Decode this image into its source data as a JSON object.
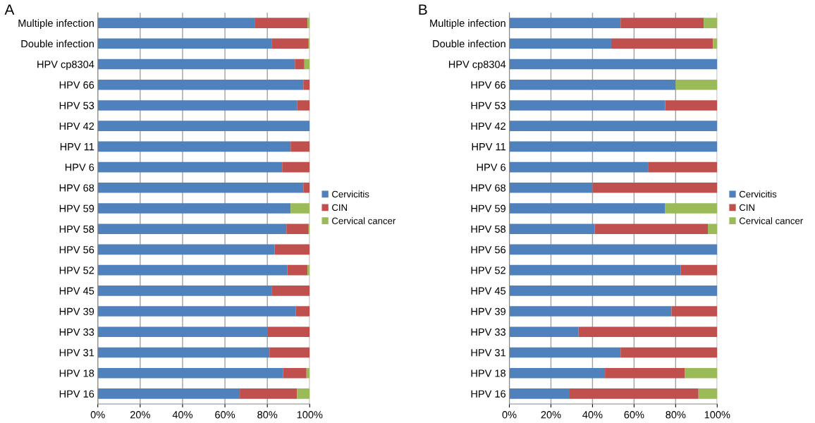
{
  "chart_data": [
    {
      "type": "bar",
      "title": "A",
      "orientation": "horizontal",
      "stacked": true,
      "grid": "x",
      "legend": "right",
      "categories": [
        "Multiple infection",
        "Double infection",
        "HPV cp8304",
        "HPV 66",
        "HPV 53",
        "HPV 42",
        "HPV 11",
        "HPV 6",
        "HPV 68",
        "HPV 59",
        "HPV 58",
        "HPV 56",
        "HPV 52",
        "HPV 45",
        "HPV 39",
        "HPV 33",
        "HPV 31",
        "HPV 18",
        "HPV 16"
      ],
      "xlim": [
        0,
        100
      ],
      "xticks": [
        {
          "value": 0,
          "label": "0%"
        },
        {
          "value": 20,
          "label": "20%"
        },
        {
          "value": 40,
          "label": "40%"
        },
        {
          "value": 60,
          "label": "60%"
        },
        {
          "value": 80,
          "label": "80%"
        },
        {
          "value": 100,
          "label": "100%"
        }
      ],
      "series": [
        {
          "name": "Cervicitis",
          "color": "#4f81bd",
          "values": [
            74,
            82,
            93,
            97,
            94,
            100,
            91,
            87,
            97,
            91,
            89,
            83.5,
            89.5,
            82,
            93.5,
            80,
            81,
            87.5,
            67
          ]
        },
        {
          "name": "CIN",
          "color": "#c0504d",
          "values": [
            25,
            17.5,
            4.5,
            3,
            6,
            0,
            9,
            13,
            3,
            0,
            10.5,
            16.5,
            9.5,
            18,
            6.5,
            20,
            19,
            11,
            27
          ]
        },
        {
          "name": "Cervical cancer",
          "color": "#9bbb59",
          "values": [
            1,
            0.5,
            2.5,
            0,
            0,
            0,
            0,
            0,
            0,
            9,
            0.5,
            0,
            1,
            0,
            0,
            0,
            0,
            1.5,
            6
          ]
        }
      ]
    },
    {
      "type": "bar",
      "title": "B",
      "orientation": "horizontal",
      "stacked": true,
      "grid": "x",
      "legend": "right",
      "categories": [
        "Multiple infection",
        "Double infection",
        "HPV cp8304",
        "HPV 66",
        "HPV 53",
        "HPV 42",
        "HPV 11",
        "HPV 6",
        "HPV 68",
        "HPV 59",
        "HPV 58",
        "HPV 56",
        "HPV 52",
        "HPV 45",
        "HPV 39",
        "HPV 33",
        "HPV 31",
        "HPV 18",
        "HPV 16"
      ],
      "xlim": [
        0,
        100
      ],
      "xticks": [
        {
          "value": 0,
          "label": "0%"
        },
        {
          "value": 20,
          "label": "20%"
        },
        {
          "value": 40,
          "label": "40%"
        },
        {
          "value": 60,
          "label": "60%"
        },
        {
          "value": 80,
          "label": "80%"
        },
        {
          "value": 100,
          "label": "100%"
        }
      ],
      "series": [
        {
          "name": "Cervicitis",
          "color": "#4f81bd",
          "values": [
            53.5,
            49,
            100,
            80,
            75,
            100,
            100,
            66.7,
            40,
            75,
            41,
            100,
            82.5,
            100,
            78,
            33.3,
            53.5,
            46,
            29
          ]
        },
        {
          "name": "CIN",
          "color": "#c0504d",
          "values": [
            40,
            49,
            0,
            0,
            25,
            0,
            0,
            33.3,
            60,
            0,
            54.5,
            0,
            17.5,
            0,
            22,
            66.7,
            46.5,
            38.5,
            62
          ]
        },
        {
          "name": "Cervical cancer",
          "color": "#9bbb59",
          "values": [
            6.5,
            2,
            0,
            20,
            0,
            0,
            0,
            0,
            0,
            25,
            4.5,
            0,
            0,
            0,
            0,
            0,
            0,
            15.5,
            9
          ]
        }
      ]
    }
  ]
}
